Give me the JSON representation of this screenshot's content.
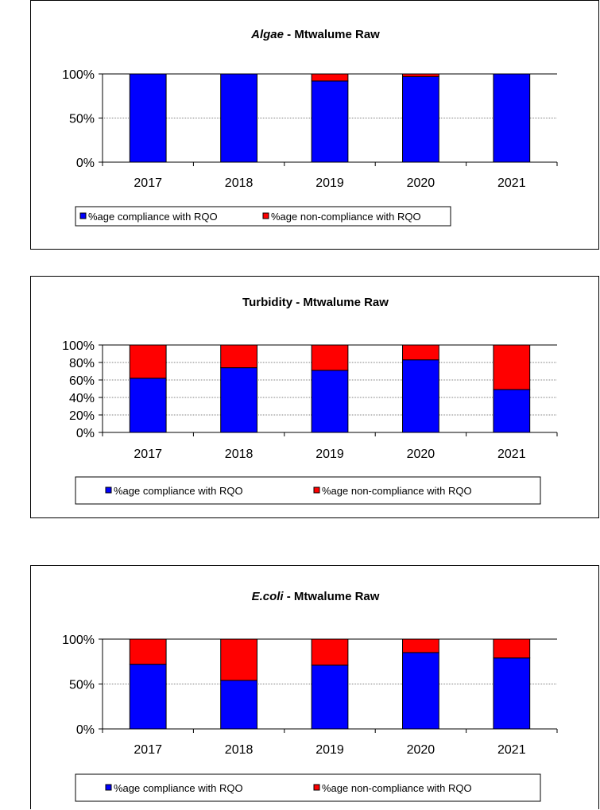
{
  "colors": {
    "compliance": "#0000ff",
    "non_compliance": "#ff0000",
    "grid": "#808080",
    "axis": "#000000"
  },
  "chart_data": [
    {
      "type": "bar",
      "stacked": true,
      "title": "Algae",
      "title_suffix": " - Mtwalume Raw",
      "title_italic_part": true,
      "categories": [
        "2017",
        "2018",
        "2019",
        "2020",
        "2021"
      ],
      "series": [
        {
          "name": "%age compliance with RQO",
          "color": "#0000ff",
          "values": [
            100,
            100,
            92,
            97,
            100
          ]
        },
        {
          "name": "%age non-compliance with RQO",
          "color": "#ff0000",
          "values": [
            0,
            0,
            8,
            3,
            0
          ]
        }
      ],
      "ylim": [
        0,
        100
      ],
      "yticks": [
        "0%",
        "50%",
        "100%"
      ],
      "ytick_values": [
        0,
        50,
        100
      ],
      "grid": true,
      "legend": "bottom"
    },
    {
      "type": "bar",
      "stacked": true,
      "title": "Turbidity - Mtwalume Raw",
      "title_suffix": "",
      "title_italic_part": false,
      "categories": [
        "2017",
        "2018",
        "2019",
        "2020",
        "2021"
      ],
      "series": [
        {
          "name": "%age compliance with RQO",
          "color": "#0000ff",
          "values": [
            62,
            74,
            71,
            83,
            49
          ]
        },
        {
          "name": "%age non-compliance with RQO",
          "color": "#ff0000",
          "values": [
            38,
            26,
            29,
            17,
            51
          ]
        }
      ],
      "ylim": [
        0,
        100
      ],
      "yticks": [
        "0%",
        "20%",
        "40%",
        "60%",
        "80%",
        "100%"
      ],
      "ytick_values": [
        0,
        20,
        40,
        60,
        80,
        100
      ],
      "grid": true,
      "legend": "bottom"
    },
    {
      "type": "bar",
      "stacked": true,
      "title": "E.coli",
      "title_suffix": " - Mtwalume Raw",
      "title_italic_part": true,
      "categories": [
        "2017",
        "2018",
        "2019",
        "2020",
        "2021"
      ],
      "series": [
        {
          "name": "%age compliance with RQO",
          "color": "#0000ff",
          "values": [
            72,
            54,
            71,
            85,
            79
          ]
        },
        {
          "name": "%age non-compliance with RQO",
          "color": "#ff0000",
          "values": [
            28,
            46,
            29,
            15,
            21
          ]
        }
      ],
      "ylim": [
        0,
        100
      ],
      "yticks": [
        "0%",
        "50%",
        "100%"
      ],
      "ytick_values": [
        0,
        50,
        100
      ],
      "grid": true,
      "legend": "bottom"
    }
  ]
}
